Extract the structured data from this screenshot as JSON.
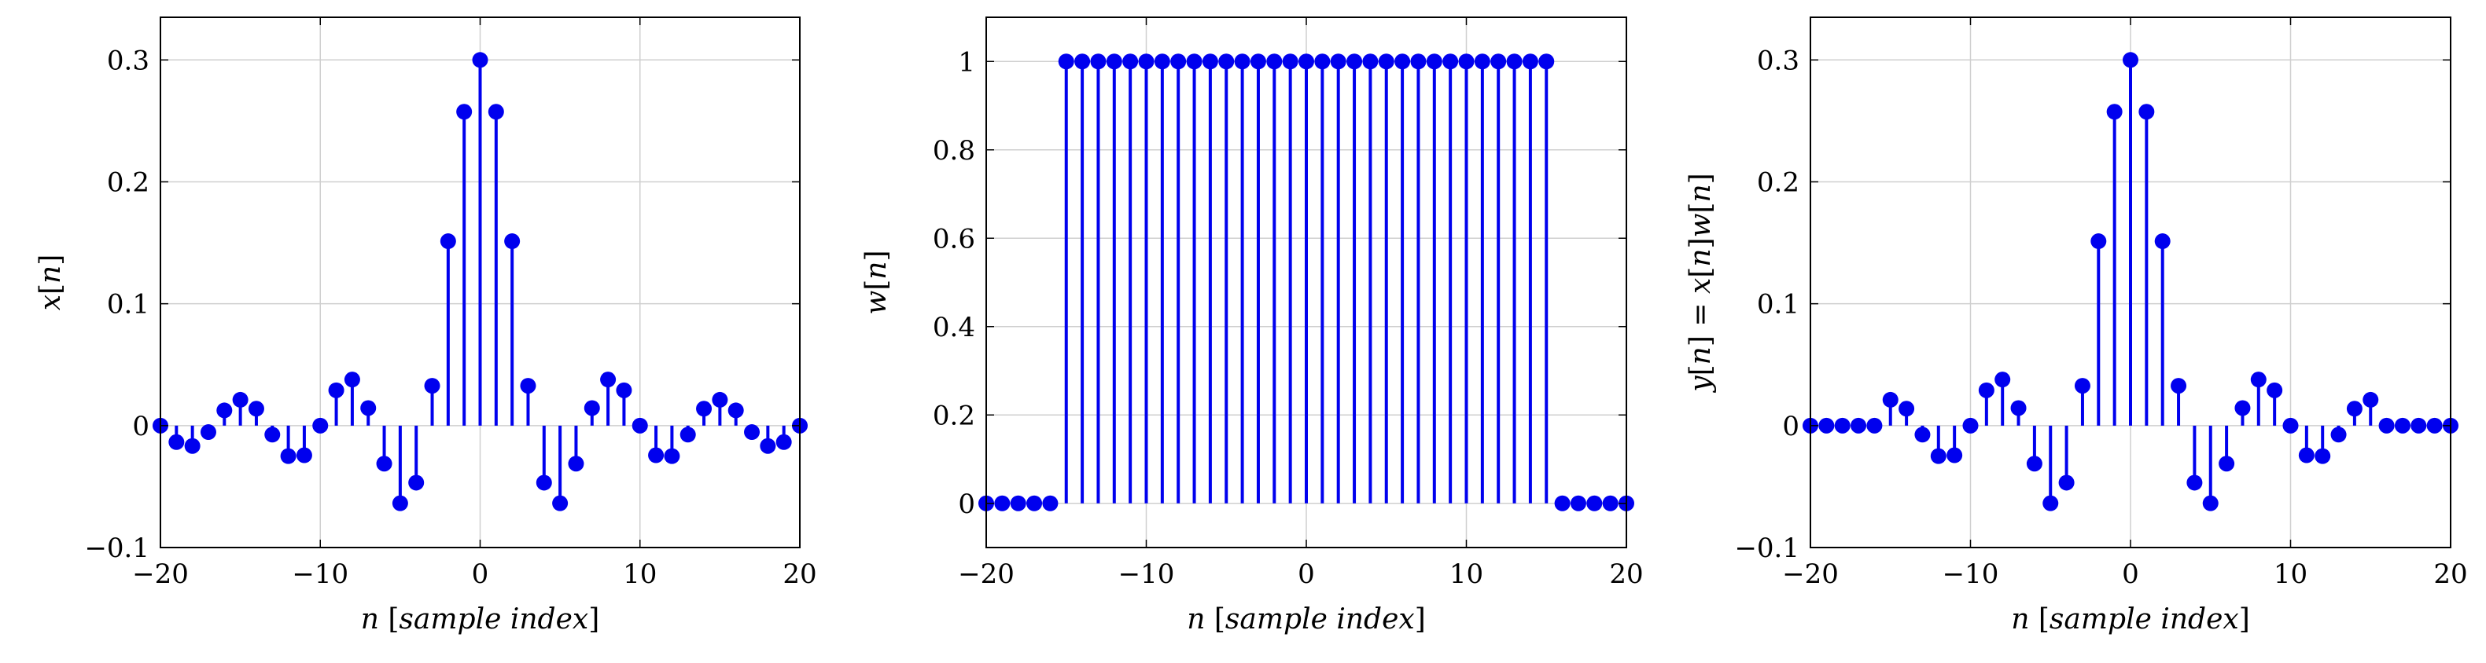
{
  "chart_data": [
    {
      "type": "stem",
      "ylabel": "x[n]",
      "xlabel": "n [sample index]",
      "xlim": [
        -20,
        20
      ],
      "ylim": [
        -0.1,
        0.335
      ],
      "xticks": [
        -20,
        -10,
        0,
        10,
        20
      ],
      "yticks": [
        -0.1,
        0,
        0.1,
        0.2,
        0.3
      ],
      "ytick_labels": [
        "−0.1",
        "0",
        "0.1",
        "0.2",
        "0.3"
      ],
      "xtick_labels": [
        "−20",
        "−10",
        "0",
        "10",
        "20"
      ],
      "grid": true,
      "color": "#0000ee",
      "x": [
        -20,
        -19,
        -18,
        -17,
        -16,
        -15,
        -14,
        -13,
        -12,
        -11,
        -10,
        -9,
        -8,
        -7,
        -6,
        -5,
        -4,
        -3,
        -2,
        -1,
        0,
        1,
        2,
        3,
        4,
        5,
        6,
        7,
        8,
        9,
        10,
        11,
        12,
        13,
        14,
        15,
        16,
        17,
        18,
        19,
        20
      ],
      "values": [
        0,
        -0.0135,
        -0.0167,
        -0.0053,
        0.0125,
        0.0212,
        0.0139,
        -0.0074,
        -0.025,
        -0.0243,
        0,
        0.029,
        0.0378,
        0.0144,
        -0.0312,
        -0.0637,
        -0.0468,
        0.0327,
        0.1513,
        0.2575,
        0.3,
        0.2575,
        0.1513,
        0.0327,
        -0.0468,
        -0.0637,
        -0.0312,
        0.0144,
        0.0378,
        0.029,
        0,
        -0.0243,
        -0.025,
        -0.0074,
        0.0139,
        0.0212,
        0.0125,
        -0.0053,
        -0.0167,
        -0.0135,
        0
      ]
    },
    {
      "type": "stem",
      "ylabel": "w[n]",
      "xlabel": "n [sample index]",
      "xlim": [
        -20,
        20
      ],
      "ylim": [
        -0.1,
        1.1
      ],
      "xticks": [
        -20,
        -10,
        0,
        10,
        20
      ],
      "yticks": [
        0,
        0.2,
        0.4,
        0.6,
        0.8,
        1
      ],
      "ytick_labels": [
        "0",
        "0.2",
        "0.4",
        "0.6",
        "0.8",
        "1"
      ],
      "xtick_labels": [
        "−20",
        "−10",
        "0",
        "10",
        "20"
      ],
      "grid": true,
      "color": "#0000ee",
      "x": [
        -20,
        -19,
        -18,
        -17,
        -16,
        -15,
        -14,
        -13,
        -12,
        -11,
        -10,
        -9,
        -8,
        -7,
        -6,
        -5,
        -4,
        -3,
        -2,
        -1,
        0,
        1,
        2,
        3,
        4,
        5,
        6,
        7,
        8,
        9,
        10,
        11,
        12,
        13,
        14,
        15,
        16,
        17,
        18,
        19,
        20
      ],
      "values": [
        0,
        0,
        0,
        0,
        0,
        1,
        1,
        1,
        1,
        1,
        1,
        1,
        1,
        1,
        1,
        1,
        1,
        1,
        1,
        1,
        1,
        1,
        1,
        1,
        1,
        1,
        1,
        1,
        1,
        1,
        1,
        1,
        1,
        1,
        1,
        1,
        0,
        0,
        0,
        0,
        0
      ]
    },
    {
      "type": "stem",
      "ylabel": "y[n] = x[n]w[n]",
      "xlabel": "n [sample index]",
      "xlim": [
        -20,
        20
      ],
      "ylim": [
        -0.1,
        0.335
      ],
      "xticks": [
        -20,
        -10,
        0,
        10,
        20
      ],
      "yticks": [
        -0.1,
        0,
        0.1,
        0.2,
        0.3
      ],
      "ytick_labels": [
        "−0.1",
        "0",
        "0.1",
        "0.2",
        "0.3"
      ],
      "xtick_labels": [
        "−20",
        "−10",
        "0",
        "10",
        "20"
      ],
      "grid": true,
      "color": "#0000ee",
      "x": [
        -20,
        -19,
        -18,
        -17,
        -16,
        -15,
        -14,
        -13,
        -12,
        -11,
        -10,
        -9,
        -8,
        -7,
        -6,
        -5,
        -4,
        -3,
        -2,
        -1,
        0,
        1,
        2,
        3,
        4,
        5,
        6,
        7,
        8,
        9,
        10,
        11,
        12,
        13,
        14,
        15,
        16,
        17,
        18,
        19,
        20
      ],
      "values": [
        0,
        0,
        0,
        0,
        0,
        0.0212,
        0.0139,
        -0.0074,
        -0.025,
        -0.0243,
        0,
        0.029,
        0.0378,
        0.0144,
        -0.0312,
        -0.0637,
        -0.0468,
        0.0327,
        0.1513,
        0.2575,
        0.3,
        0.2575,
        0.1513,
        0.0327,
        -0.0468,
        -0.0637,
        -0.0312,
        0.0144,
        0.0378,
        0.029,
        0,
        -0.0243,
        -0.025,
        -0.0074,
        0.0139,
        0.0212,
        0,
        0,
        0,
        0,
        0
      ]
    }
  ]
}
